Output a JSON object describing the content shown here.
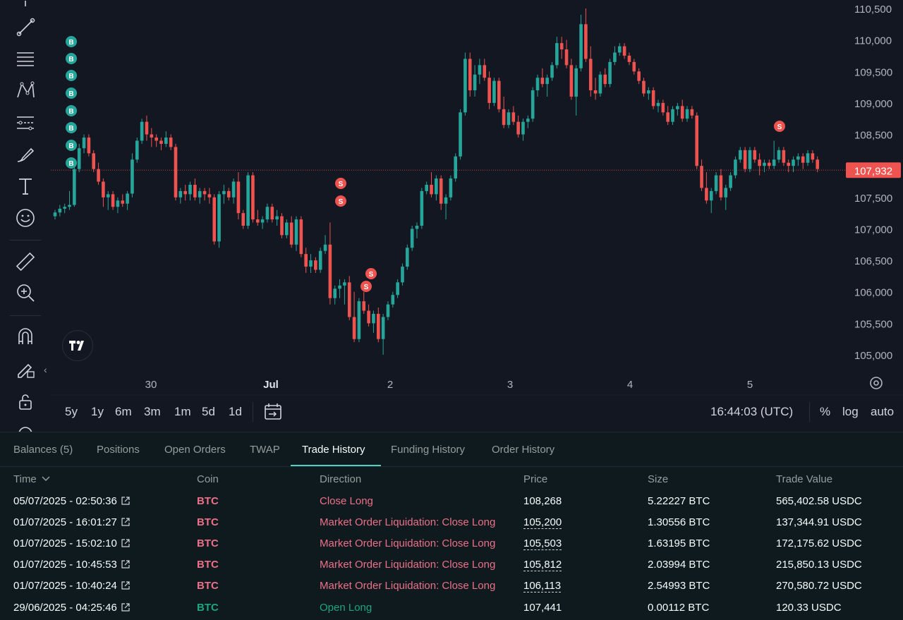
{
  "chart": {
    "price_axis": [
      "110,500",
      "110,000",
      "109,500",
      "109,000",
      "108,500",
      "108,000",
      "107,500",
      "107,000",
      "106,500",
      "106,000",
      "105,500",
      "105,000"
    ],
    "time_axis": [
      "30",
      "Jul",
      "2",
      "3",
      "4",
      "5"
    ],
    "current_price": "107,932",
    "colors": {
      "up": "#26a69a",
      "down": "#ef5350",
      "background": "#131722",
      "price_tag": "#ef5350"
    },
    "markers": {
      "buy": "B",
      "sell": "S"
    },
    "timeframes": [
      "5y",
      "1y",
      "6m",
      "3m",
      "1m",
      "5d",
      "1d"
    ],
    "clock": "16:44:03 (UTC)",
    "scale_options": [
      "%",
      "log",
      "auto"
    ]
  },
  "chart_data": {
    "type": "candlestick",
    "ylim": [
      104900,
      110550
    ],
    "candles": [
      [
        107200,
        107300,
        107150,
        107260
      ],
      [
        107260,
        107380,
        107200,
        107320
      ],
      [
        107320,
        107400,
        107250,
        107350
      ],
      [
        107350,
        107600,
        107300,
        107380
      ],
      [
        107380,
        108000,
        107350,
        107950
      ],
      [
        107950,
        108350,
        107900,
        108280
      ],
      [
        108280,
        108500,
        108200,
        108450
      ],
      [
        108450,
        108500,
        108150,
        108200
      ],
      [
        108200,
        108250,
        107900,
        107950
      ],
      [
        107950,
        108050,
        107700,
        107750
      ],
      [
        107750,
        107800,
        107350,
        107500
      ],
      [
        107500,
        107600,
        107300,
        107550
      ],
      [
        107550,
        107600,
        107300,
        107350
      ],
      [
        107350,
        107500,
        107250,
        107450
      ],
      [
        107450,
        107550,
        107350,
        107400
      ],
      [
        107400,
        107600,
        107300,
        107560
      ],
      [
        107560,
        108200,
        107500,
        108100
      ],
      [
        108100,
        108450,
        108050,
        108400
      ],
      [
        108400,
        108750,
        108350,
        108700
      ],
      [
        108700,
        108800,
        108400,
        108500
      ],
      [
        108500,
        108600,
        108300,
        108450
      ],
      [
        108450,
        108500,
        108300,
        108400
      ],
      [
        108400,
        108450,
        108250,
        108350
      ],
      [
        108350,
        108550,
        108300,
        108450
      ],
      [
        108450,
        108500,
        108250,
        108300
      ],
      [
        108300,
        108350,
        107450,
        107500
      ],
      [
        107500,
        107650,
        107400,
        107600
      ],
      [
        107600,
        107700,
        107450,
        107550
      ],
      [
        107550,
        107750,
        107450,
        107700
      ],
      [
        107700,
        107800,
        107450,
        107500
      ],
      [
        107500,
        107650,
        107400,
        107600
      ],
      [
        107600,
        107650,
        107450,
        107550
      ],
      [
        107550,
        107650,
        107400,
        107500
      ],
      [
        107500,
        107550,
        106750,
        106800
      ],
      [
        106800,
        107600,
        106700,
        107550
      ],
      [
        107550,
        107700,
        107400,
        107600
      ],
      [
        107600,
        107650,
        107450,
        107500
      ],
      [
        107500,
        107800,
        107400,
        107750
      ],
      [
        107750,
        107900,
        107150,
        107250
      ],
      [
        107250,
        107300,
        107000,
        107050
      ],
      [
        107050,
        107900,
        107000,
        107850
      ],
      [
        107850,
        107900,
        107100,
        107150
      ],
      [
        107150,
        107300,
        107050,
        107100
      ],
      [
        107100,
        107200,
        107000,
        107150
      ],
      [
        107150,
        107400,
        107100,
        107350
      ],
      [
        107350,
        107400,
        107100,
        107150
      ],
      [
        107150,
        107300,
        107050,
        107200
      ],
      [
        107200,
        107250,
        106850,
        106900
      ],
      [
        106900,
        107150,
        106850,
        107100
      ],
      [
        107100,
        107200,
        106700,
        106750
      ],
      [
        106750,
        107200,
        106650,
        107150
      ],
      [
        107150,
        107200,
        106550,
        106600
      ],
      [
        106600,
        106700,
        106300,
        106400
      ],
      [
        106400,
        106600,
        106300,
        106500
      ],
      [
        106500,
        106550,
        106300,
        106350
      ],
      [
        106350,
        106700,
        106300,
        106650
      ],
      [
        106650,
        106900,
        106600,
        106750
      ],
      [
        106750,
        107100,
        105800,
        105900
      ],
      [
        105900,
        106100,
        105800,
        106050
      ],
      [
        106050,
        106200,
        105900,
        106100
      ],
      [
        106100,
        106200,
        105800,
        106150
      ],
      [
        106150,
        106250,
        105550,
        105600
      ],
      [
        105600,
        106000,
        105200,
        105250
      ],
      [
        105250,
        105900,
        105200,
        105850
      ],
      [
        105850,
        106000,
        105650,
        105700
      ],
      [
        105700,
        105800,
        105450,
        105500
      ],
      [
        105500,
        105700,
        105350,
        105650
      ],
      [
        105650,
        105750,
        105200,
        105250
      ],
      [
        105250,
        105650,
        105000,
        105600
      ],
      [
        105600,
        105850,
        105550,
        105800
      ],
      [
        105800,
        106000,
        105750,
        105950
      ],
      [
        105950,
        106200,
        105900,
        106150
      ],
      [
        106150,
        106450,
        106100,
        106400
      ],
      [
        106400,
        106750,
        106350,
        106700
      ],
      [
        106700,
        107050,
        106650,
        107000
      ],
      [
        107000,
        107100,
        106850,
        107050
      ],
      [
        107050,
        107650,
        107000,
        107600
      ],
      [
        107600,
        107750,
        107550,
        107700
      ],
      [
        107700,
        107900,
        107500,
        107550
      ],
      [
        107550,
        107850,
        107450,
        107800
      ],
      [
        107800,
        107850,
        107300,
        107400
      ],
      [
        107400,
        107550,
        107150,
        107500
      ],
      [
        107500,
        107850,
        107450,
        107800
      ],
      [
        107800,
        108200,
        107750,
        108150
      ],
      [
        108150,
        108900,
        108100,
        108850
      ],
      [
        108850,
        109800,
        108800,
        109700
      ],
      [
        109700,
        109800,
        109100,
        109200
      ],
      [
        109200,
        109600,
        109100,
        109450
      ],
      [
        109450,
        109700,
        109300,
        109600
      ],
      [
        109600,
        109700,
        109350,
        109400
      ],
      [
        109400,
        109500,
        108900,
        109000
      ],
      [
        109000,
        109400,
        108950,
        109350
      ],
      [
        109350,
        109400,
        108850,
        108900
      ],
      [
        108900,
        109100,
        108600,
        108650
      ],
      [
        108650,
        108900,
        108600,
        108850
      ],
      [
        108850,
        108950,
        108650,
        108700
      ],
      [
        108700,
        108800,
        108450,
        108500
      ],
      [
        108500,
        108750,
        108400,
        108700
      ],
      [
        108700,
        108800,
        108600,
        108750
      ],
      [
        108750,
        109250,
        108700,
        109200
      ],
      [
        109200,
        109450,
        109100,
        109400
      ],
      [
        109400,
        109550,
        109250,
        109300
      ],
      [
        109300,
        109450,
        109100,
        109400
      ],
      [
        109400,
        109650,
        109350,
        109600
      ],
      [
        109600,
        110050,
        109550,
        109950
      ],
      [
        109950,
        110050,
        109700,
        109850
      ],
      [
        109850,
        110000,
        109550,
        109600
      ],
      [
        109600,
        109700,
        109050,
        109100
      ],
      [
        109100,
        109600,
        108800,
        109550
      ],
      [
        109550,
        110400,
        109500,
        110250
      ],
      [
        110250,
        110500,
        109650,
        109700
      ],
      [
        109700,
        109900,
        109100,
        109200
      ],
      [
        109200,
        109400,
        109050,
        109150
      ],
      [
        109150,
        109500,
        109100,
        109450
      ],
      [
        109450,
        109550,
        109250,
        109300
      ],
      [
        109300,
        109700,
        109250,
        109650
      ],
      [
        109650,
        109900,
        109600,
        109800
      ],
      [
        109800,
        109950,
        109750,
        109900
      ],
      [
        109900,
        109950,
        109700,
        109750
      ],
      [
        109750,
        109800,
        109600,
        109650
      ],
      [
        109650,
        109700,
        109450,
        109500
      ],
      [
        109500,
        109550,
        109300,
        109350
      ],
      [
        109350,
        109400,
        109100,
        109150
      ],
      [
        109150,
        109250,
        109050,
        109200
      ],
      [
        109200,
        109250,
        108900,
        108950
      ],
      [
        108950,
        109050,
        108850,
        109000
      ],
      [
        109000,
        109050,
        108800,
        108850
      ],
      [
        108850,
        108950,
        108650,
        108700
      ],
      [
        108700,
        108950,
        108650,
        108900
      ],
      [
        108900,
        109000,
        108800,
        108950
      ],
      [
        108950,
        109050,
        108700,
        108750
      ],
      [
        108750,
        108950,
        108700,
        108900
      ],
      [
        108900,
        108950,
        108750,
        108800
      ],
      [
        108800,
        108850,
        107950,
        108000
      ],
      [
        108000,
        108100,
        107600,
        107650
      ],
      [
        107650,
        107900,
        107400,
        107450
      ],
      [
        107450,
        107650,
        107250,
        107600
      ],
      [
        107600,
        107900,
        107550,
        107850
      ],
      [
        107850,
        107950,
        107450,
        107500
      ],
      [
        107500,
        107700,
        107300,
        107650
      ],
      [
        107650,
        107900,
        107600,
        107850
      ],
      [
        107850,
        108150,
        107800,
        108100
      ],
      [
        108100,
        108300,
        108050,
        108250
      ],
      [
        108250,
        108300,
        107900,
        107950
      ],
      [
        107950,
        108300,
        107900,
        108250
      ],
      [
        108250,
        108300,
        108050,
        108100
      ],
      [
        108100,
        108200,
        107850,
        108000
      ],
      [
        108000,
        108100,
        107900,
        108050
      ],
      [
        108050,
        108100,
        107950,
        108000
      ],
      [
        108000,
        108400,
        107950,
        108100
      ],
      [
        108100,
        108300,
        108050,
        108250
      ],
      [
        108250,
        108300,
        108000,
        108050
      ],
      [
        108050,
        108100,
        107900,
        108000
      ],
      [
        108000,
        108150,
        107900,
        108100
      ],
      [
        108100,
        108200,
        108000,
        108150
      ],
      [
        108150,
        108200,
        107950,
        108050
      ],
      [
        108050,
        108250,
        108000,
        108200
      ],
      [
        108200,
        108250,
        108050,
        108100
      ],
      [
        108100,
        108150,
        107900,
        107950
      ]
    ],
    "buy_markers": 8,
    "sell_markers": 5
  },
  "tabs": [
    "Balances (5)",
    "Positions",
    "Open Orders",
    "TWAP",
    "Trade History",
    "Funding History",
    "Order History"
  ],
  "active_tab": "Trade History",
  "table": {
    "headers": [
      "Time",
      "Coin",
      "Direction",
      "Price",
      "Size",
      "Trade Value"
    ],
    "rows": [
      {
        "time": "05/07/2025 - 02:50:36",
        "coin": "BTC",
        "direction": "Close Long",
        "price": "108,268",
        "size": "5.22227 BTC",
        "value": "565,402.58 USDC"
      },
      {
        "time": "01/07/2025 - 16:01:27",
        "coin": "BTC",
        "direction": "Market Order Liquidation: Close Long",
        "price": "105,200",
        "size": "1.30556 BTC",
        "value": "137,344.91 USDC"
      },
      {
        "time": "01/07/2025 - 15:02:10",
        "coin": "BTC",
        "direction": "Market Order Liquidation: Close Long",
        "price": "105,503",
        "size": "1.63195 BTC",
        "value": "172,175.62 USDC"
      },
      {
        "time": "01/07/2025 - 10:45:53",
        "coin": "BTC",
        "direction": "Market Order Liquidation: Close Long",
        "price": "105,812",
        "size": "2.03994 BTC",
        "value": "215,850.13 USDC"
      },
      {
        "time": "01/07/2025 - 10:40:24",
        "coin": "BTC",
        "direction": "Market Order Liquidation: Close Long",
        "price": "106,113",
        "size": "2.54993 BTC",
        "value": "270,580.72 USDC"
      },
      {
        "time": "29/06/2025 - 04:25:46",
        "coin": "BTC",
        "direction": "Open Long",
        "price": "107,441",
        "size": "0.00112 BTC",
        "value": "120.33 USDC"
      }
    ]
  }
}
